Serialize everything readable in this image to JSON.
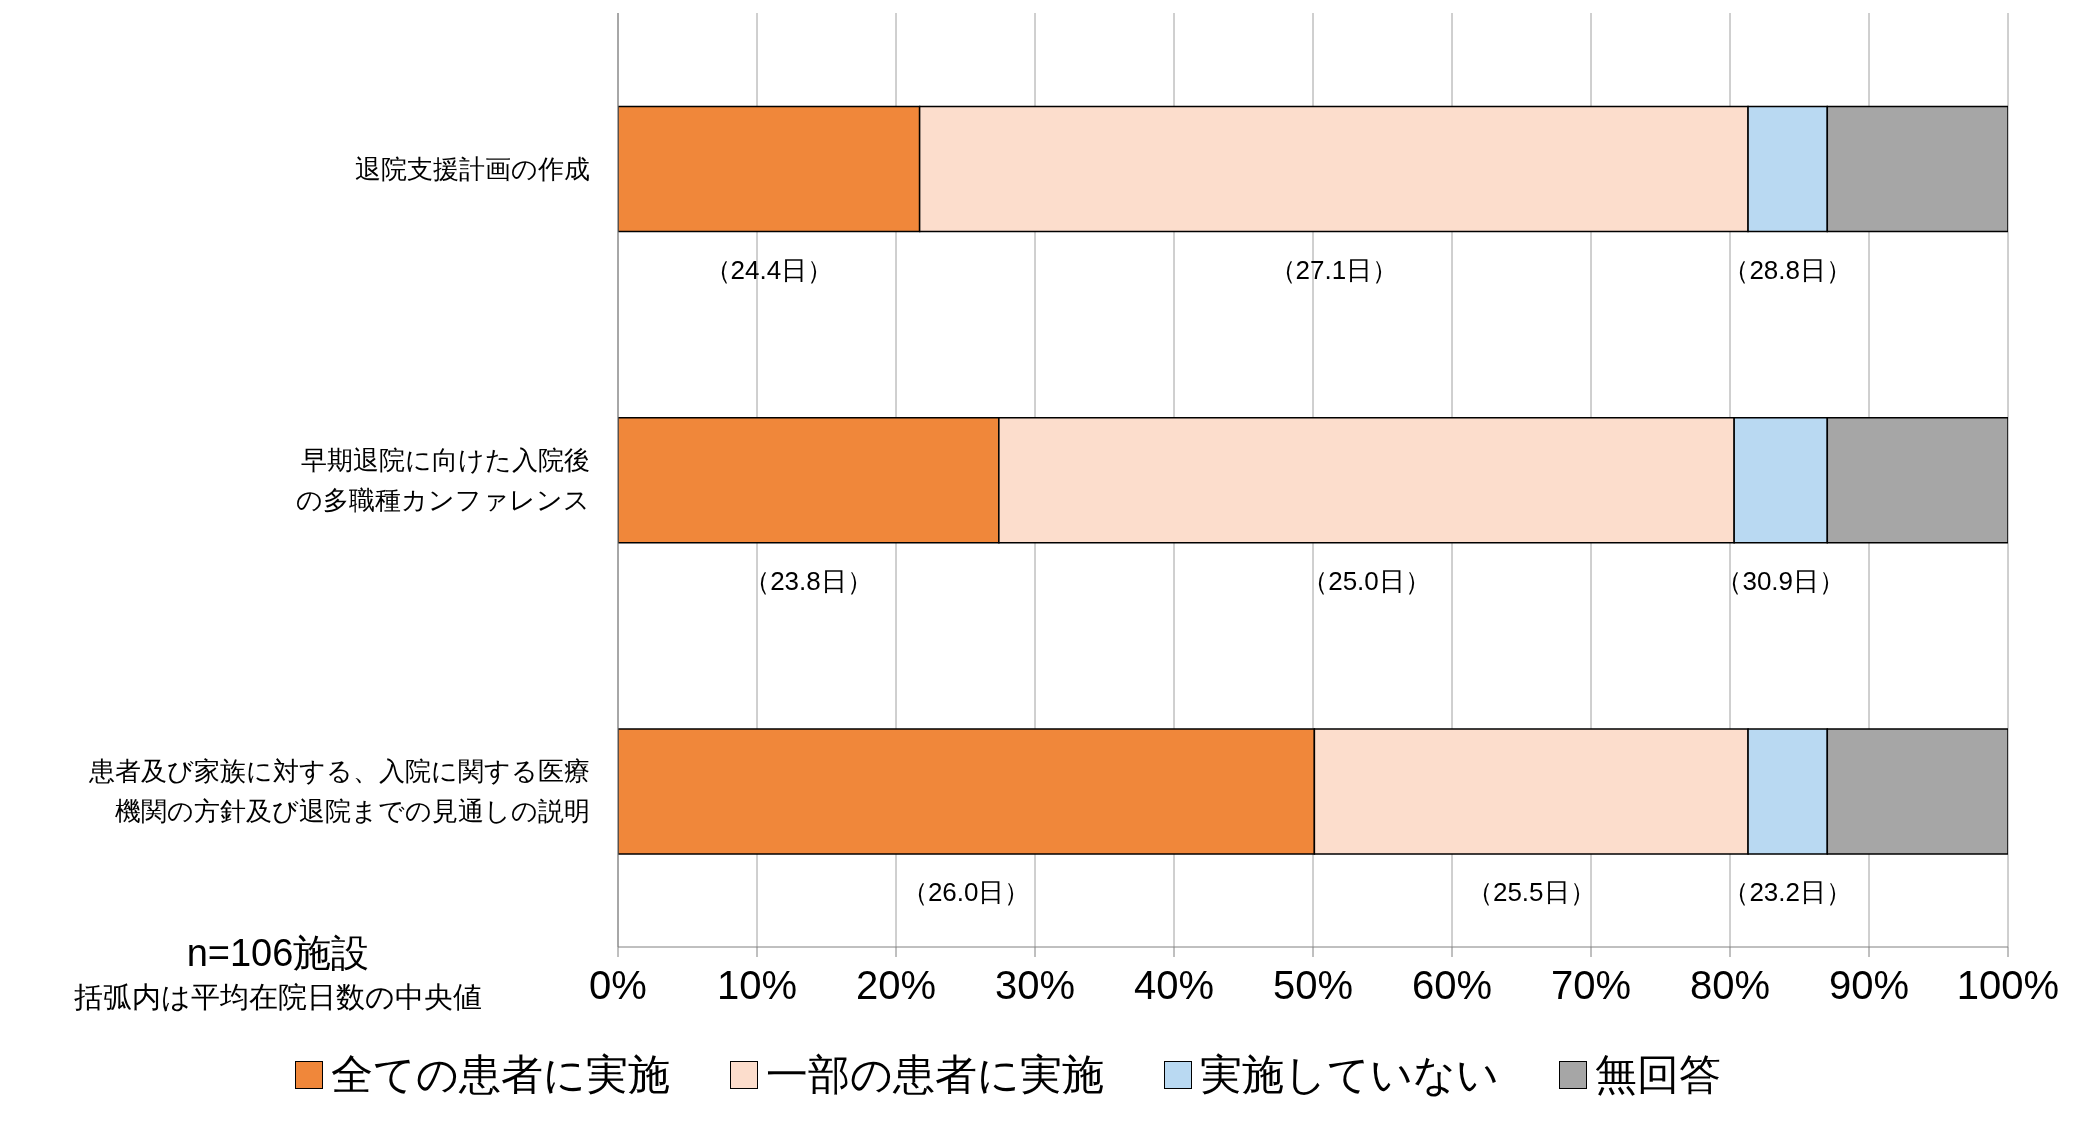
{
  "chart_data": {
    "type": "bar",
    "orientation": "horizontal",
    "stacked": true,
    "categories": [
      "退院支援計画の作成",
      "早期退院に向けた入院後の多職種カンファレンス",
      "患者及び家族に対する、入院に関する医療機関の方針及び退院までの見通しの説明"
    ],
    "series": [
      {
        "name": "全ての患者に実施",
        "color": "#f0873a",
        "values": [
          21.7,
          27.4,
          50.1
        ]
      },
      {
        "name": "一部の患者に実施",
        "color": "#fcddcc",
        "values": [
          59.6,
          52.9,
          31.2
        ]
      },
      {
        "name": "実施していない",
        "color": "#b9d9f2",
        "values": [
          5.7,
          6.7,
          5.7
        ]
      },
      {
        "name": "無回答",
        "color": "#a6a6a6",
        "values": [
          13.0,
          13.0,
          13.0
        ]
      }
    ],
    "xlim": [
      0,
      100
    ],
    "xticks": [
      {
        "value": 0,
        "label": "0%"
      },
      {
        "value": 10,
        "label": "10%"
      },
      {
        "value": 20,
        "label": "20%"
      },
      {
        "value": 30,
        "label": "30%"
      },
      {
        "value": 40,
        "label": "40%"
      },
      {
        "value": 50,
        "label": "50%"
      },
      {
        "value": 60,
        "label": "60%"
      },
      {
        "value": 70,
        "label": "70%"
      },
      {
        "value": 80,
        "label": "80%"
      },
      {
        "value": 90,
        "label": "90%"
      },
      {
        "value": 100,
        "label": "100%"
      }
    ],
    "grid": "x",
    "legend": "bottom",
    "annotations": [
      "（24.4日）",
      "（27.1日）",
      "（28.8日）",
      "（23.8日）",
      "（25.0日）",
      "（30.9日）",
      "（26.0日）",
      "（25.5日）",
      "（23.2日）",
      "n=106施設",
      "括弧内は平均在院日数の中央値"
    ]
  }
}
